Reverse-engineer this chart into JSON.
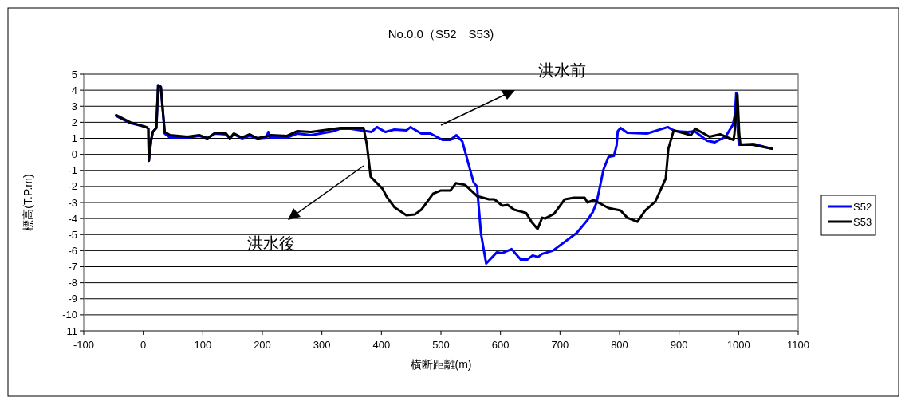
{
  "chart_data": {
    "type": "line",
    "title": "No.0.0（S52　S53)",
    "xlabel": "横断距離(m)",
    "ylabel": "標高(T.P.m)",
    "xlim": [
      -100,
      1100
    ],
    "xticks": [
      -100,
      0,
      100,
      200,
      300,
      400,
      500,
      600,
      700,
      800,
      900,
      1000,
      1100
    ],
    "ylim": [
      -11,
      5
    ],
    "yticks": [
      -11,
      -10,
      -9,
      -8,
      -7,
      -6,
      -5,
      -4,
      -3,
      -2,
      -1,
      0,
      1,
      2,
      3,
      4,
      5
    ],
    "grid": "y",
    "legend": "right",
    "marker": "none",
    "line_style": "solid",
    "annotations": [
      "洪水前",
      "洪水後"
    ],
    "series": [
      {
        "name": "S52",
        "color": "#0000ff",
        "x": [
          -45.5,
          -22,
          5,
          8.5,
          9.4,
          13,
          16,
          22,
          25,
          29.5,
          36,
          45,
          74,
          94,
          107.6,
          121,
          139,
          145.5,
          152,
          165.6,
          179,
          192,
          207,
          210,
          212,
          241.5,
          259,
          281.7,
          320,
          331,
          348.6,
          383.5,
          392.5,
          406.6,
          422,
          442,
          449,
          467,
          482.6,
          502.6,
          516,
          526,
          536,
          547,
          554.9,
          560.6,
          567.3,
          576,
          594,
          603,
          618.7,
          634,
          645.5,
          654,
          663,
          670,
          688,
          728,
          746,
          755,
          761.5,
          773,
          781.6,
          790.5,
          795,
          797,
          801.7,
          813,
          846,
          881,
          893,
          915,
          926,
          947,
          960,
          978,
          990.5,
          994,
          996,
          998,
          1000.5,
          1025,
          1056
        ],
        "values": [
          2.4,
          1.95,
          1.7,
          1.6,
          -0.4,
          0.85,
          1.4,
          1.65,
          4.3,
          4.2,
          1.3,
          1.05,
          1.05,
          1.15,
          1.0,
          1.3,
          1.25,
          1.0,
          1.25,
          1.0,
          1.15,
          1.0,
          1.05,
          1.4,
          1.05,
          1.05,
          1.3,
          1.2,
          1.45,
          1.6,
          1.6,
          1.4,
          1.7,
          1.4,
          1.55,
          1.5,
          1.7,
          1.3,
          1.3,
          0.9,
          0.9,
          1.2,
          0.8,
          -0.7,
          -1.75,
          -2.0,
          -4.95,
          -6.8,
          -6.1,
          -6.15,
          -5.9,
          -6.55,
          -6.55,
          -6.3,
          -6.4,
          -6.2,
          -6.0,
          -4.9,
          -4.1,
          -3.6,
          -3.0,
          -0.95,
          -0.15,
          -0.1,
          0.55,
          1.45,
          1.65,
          1.35,
          1.3,
          1.7,
          1.45,
          1.4,
          1.45,
          0.85,
          0.75,
          1.1,
          1.85,
          2.5,
          3.85,
          1.8,
          0.6,
          0.65,
          0.35
        ]
      },
      {
        "name": "S53",
        "color": "#000000",
        "x": [
          -45.5,
          -22,
          5,
          8.5,
          9.4,
          13,
          16,
          22,
          25,
          29.5,
          36,
          45,
          74,
          94,
          107.6,
          121,
          139,
          145.5,
          152,
          165.6,
          179,
          192,
          214.7,
          241.5,
          259,
          281.7,
          331,
          348.6,
          370,
          375.4,
          382,
          402,
          409,
          422,
          442,
          456,
          467,
          487,
          500,
          516,
          525,
          540.5,
          560.6,
          580.7,
          589.7,
          603,
          612,
          623,
          643,
          652,
          662.4,
          670,
          675,
          690,
          708,
          723.6,
          741.5,
          746,
          757,
          781.6,
          801.7,
          813,
          830,
          843,
          860,
          877.6,
          882,
          891,
          920,
          927,
          951,
          969,
          991.5,
          993,
          998,
          1001,
          1003,
          1023,
          1056
        ],
        "values": [
          2.45,
          2.0,
          1.7,
          1.6,
          -0.4,
          0.85,
          1.4,
          1.65,
          4.3,
          4.2,
          1.4,
          1.2,
          1.1,
          1.2,
          1.0,
          1.35,
          1.3,
          1.0,
          1.3,
          1.05,
          1.25,
          1.0,
          1.2,
          1.15,
          1.45,
          1.4,
          1.65,
          1.65,
          1.65,
          0.65,
          -1.4,
          -2.15,
          -2.65,
          -3.3,
          -3.8,
          -3.75,
          -3.45,
          -2.45,
          -2.25,
          -2.25,
          -1.8,
          -1.9,
          -2.6,
          -2.8,
          -2.8,
          -3.2,
          -3.15,
          -3.45,
          -3.65,
          -4.2,
          -4.65,
          -3.95,
          -4.0,
          -3.7,
          -2.8,
          -2.7,
          -2.7,
          -3.0,
          -2.85,
          -3.35,
          -3.5,
          -3.95,
          -4.2,
          -3.5,
          -2.95,
          -1.5,
          0.35,
          1.5,
          1.2,
          1.6,
          1.1,
          1.25,
          0.9,
          1.3,
          3.75,
          1.3,
          0.6,
          0.6,
          0.35
        ]
      }
    ]
  }
}
